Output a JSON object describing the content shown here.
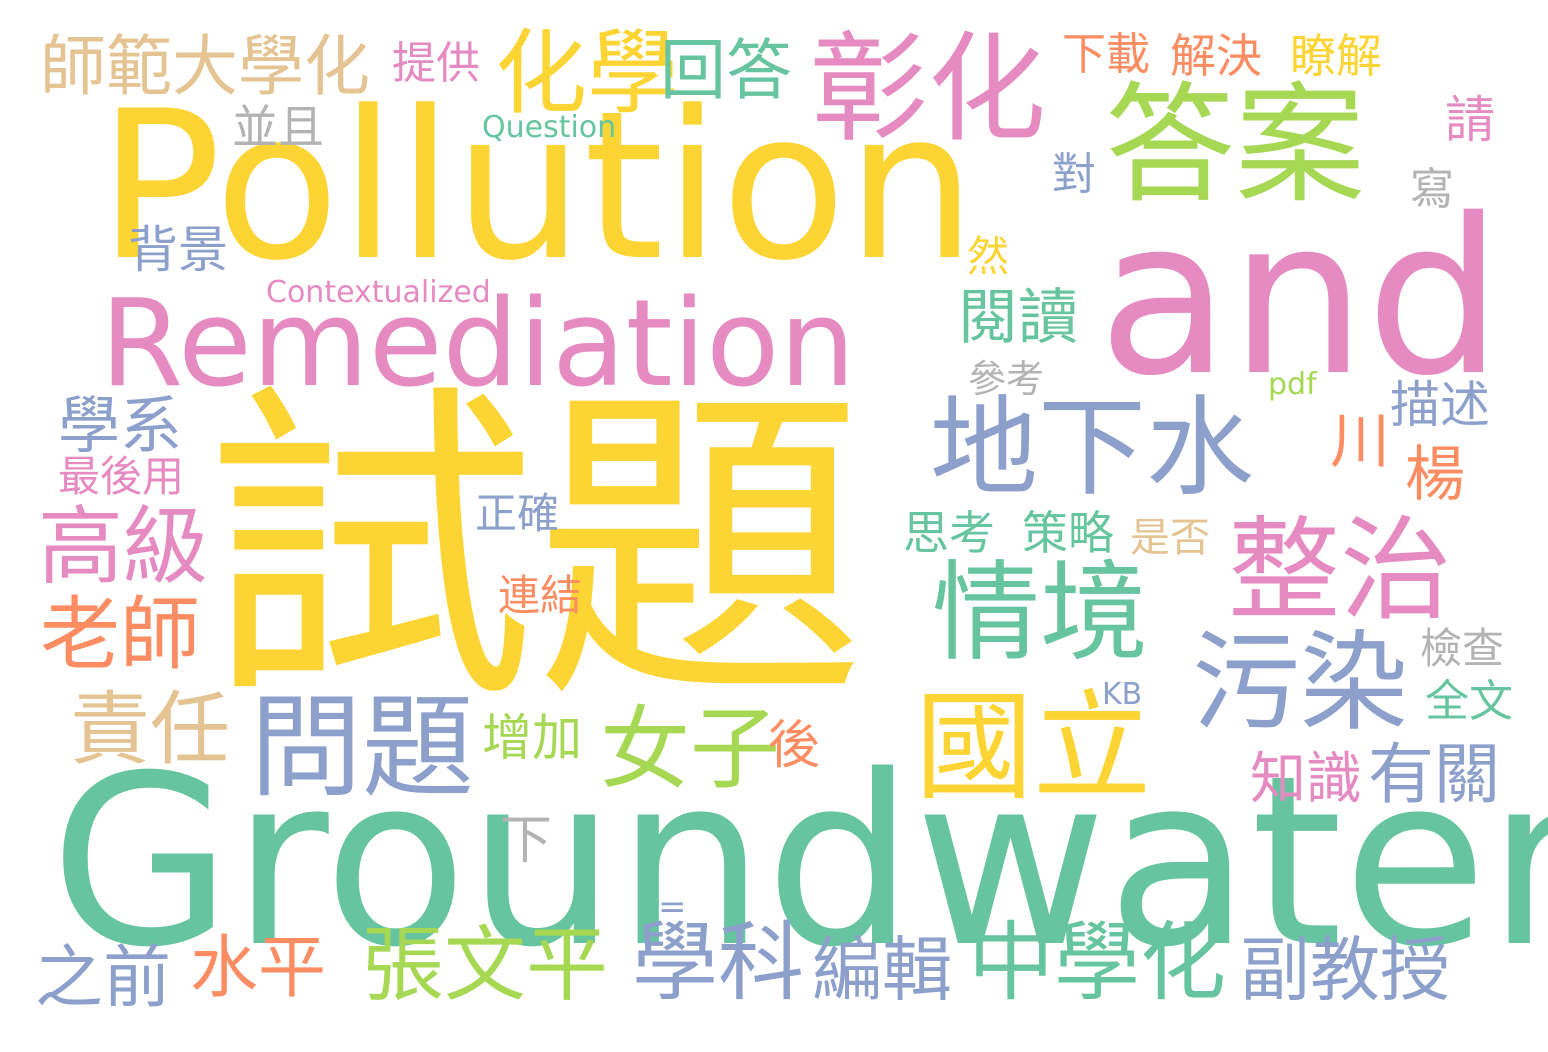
{
  "palette": {
    "yellow": "#FCD535",
    "green": "#66C5A0",
    "pink": "#E68AC2",
    "lime": "#A6D854",
    "blue": "#8DA0CB",
    "orange": "#FC8D62",
    "tan": "#E5C494",
    "gray": "#B3B3B3"
  },
  "words": [
    {
      "text": "Pollution",
      "color": "yellow"
    },
    {
      "text": "and",
      "color": "pink"
    },
    {
      "text": "Remediation",
      "color": "pink"
    },
    {
      "text": "試題",
      "color": "yellow"
    },
    {
      "text": "Groundwater",
      "color": "green"
    },
    {
      "text": "答案",
      "color": "lime"
    },
    {
      "text": "彰化",
      "color": "pink"
    },
    {
      "text": "化學",
      "color": "yellow"
    },
    {
      "text": "回答",
      "color": "green"
    },
    {
      "text": "師範大學化",
      "color": "tan"
    },
    {
      "text": "提供",
      "color": "pink"
    },
    {
      "text": "並且",
      "color": "gray"
    },
    {
      "text": "Question",
      "color": "green"
    },
    {
      "text": "下載",
      "color": "orange"
    },
    {
      "text": "解決",
      "color": "orange"
    },
    {
      "text": "瞭解",
      "color": "yellow"
    },
    {
      "text": "請",
      "color": "pink"
    },
    {
      "text": "寫",
      "color": "gray"
    },
    {
      "text": "對",
      "color": "blue"
    },
    {
      "text": "背景",
      "color": "blue"
    },
    {
      "text": "然",
      "color": "yellow"
    },
    {
      "text": "Contextualized",
      "color": "pink"
    },
    {
      "text": "閱讀",
      "color": "green"
    },
    {
      "text": "參考",
      "color": "gray"
    },
    {
      "text": "pdf",
      "color": "lime"
    },
    {
      "text": "描述",
      "color": "blue"
    },
    {
      "text": "川",
      "color": "orange"
    },
    {
      "text": "楊",
      "color": "orange"
    },
    {
      "text": "學系",
      "color": "blue"
    },
    {
      "text": "最後用",
      "color": "pink"
    },
    {
      "text": "地下水",
      "color": "blue"
    },
    {
      "text": "整治",
      "color": "pink"
    },
    {
      "text": "高級",
      "color": "pink"
    },
    {
      "text": "正確",
      "color": "blue"
    },
    {
      "text": "情境",
      "color": "green"
    },
    {
      "text": "思考",
      "color": "green"
    },
    {
      "text": "策略",
      "color": "green"
    },
    {
      "text": "是否",
      "color": "tan"
    },
    {
      "text": "老師",
      "color": "orange"
    },
    {
      "text": "連結",
      "color": "orange"
    },
    {
      "text": "污染",
      "color": "blue"
    },
    {
      "text": "檢查",
      "color": "gray"
    },
    {
      "text": "全文",
      "color": "green"
    },
    {
      "text": "KB",
      "color": "blue"
    },
    {
      "text": "責任",
      "color": "tan"
    },
    {
      "text": "問題",
      "color": "blue"
    },
    {
      "text": "女子",
      "color": "lime"
    },
    {
      "text": "國立",
      "color": "yellow"
    },
    {
      "text": "增加",
      "color": "lime"
    },
    {
      "text": "後",
      "color": "orange"
    },
    {
      "text": "知識",
      "color": "pink"
    },
    {
      "text": "有關",
      "color": "blue"
    },
    {
      "text": "下",
      "color": "gray"
    },
    {
      "text": "=",
      "color": "blue"
    },
    {
      "text": "之前",
      "color": "blue"
    },
    {
      "text": "水平",
      "color": "orange"
    },
    {
      "text": "張文平",
      "color": "lime"
    },
    {
      "text": "學科",
      "color": "blue"
    },
    {
      "text": "編輯",
      "color": "blue"
    },
    {
      "text": "中學化",
      "color": "green"
    },
    {
      "text": "副教授",
      "color": "blue"
    }
  ]
}
